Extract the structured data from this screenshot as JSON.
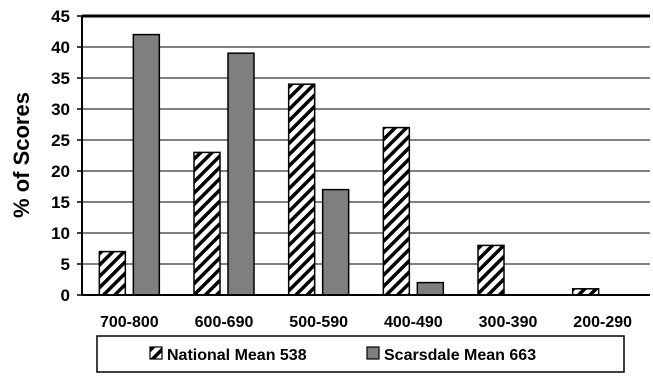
{
  "chart_data": {
    "type": "bar",
    "ylabel": "% of Scores",
    "ylim": [
      0,
      45
    ],
    "yticks": [
      0,
      5,
      10,
      15,
      20,
      25,
      30,
      35,
      40,
      45
    ],
    "grid": true,
    "legend_position": "bottom",
    "categories": [
      "700-800",
      "600-690",
      "500-590",
      "400-490",
      "300-390",
      "200-290"
    ],
    "series": [
      {
        "name": "National Mean 538",
        "values": [
          7,
          23,
          34,
          27,
          8,
          1
        ],
        "pattern": "diagonal-hatch",
        "color": "#ffffff"
      },
      {
        "name": "Scarsdale Mean 663",
        "values": [
          42,
          39,
          17,
          2,
          0,
          0
        ],
        "pattern": "solid",
        "color": "#7f7f7f"
      }
    ]
  }
}
